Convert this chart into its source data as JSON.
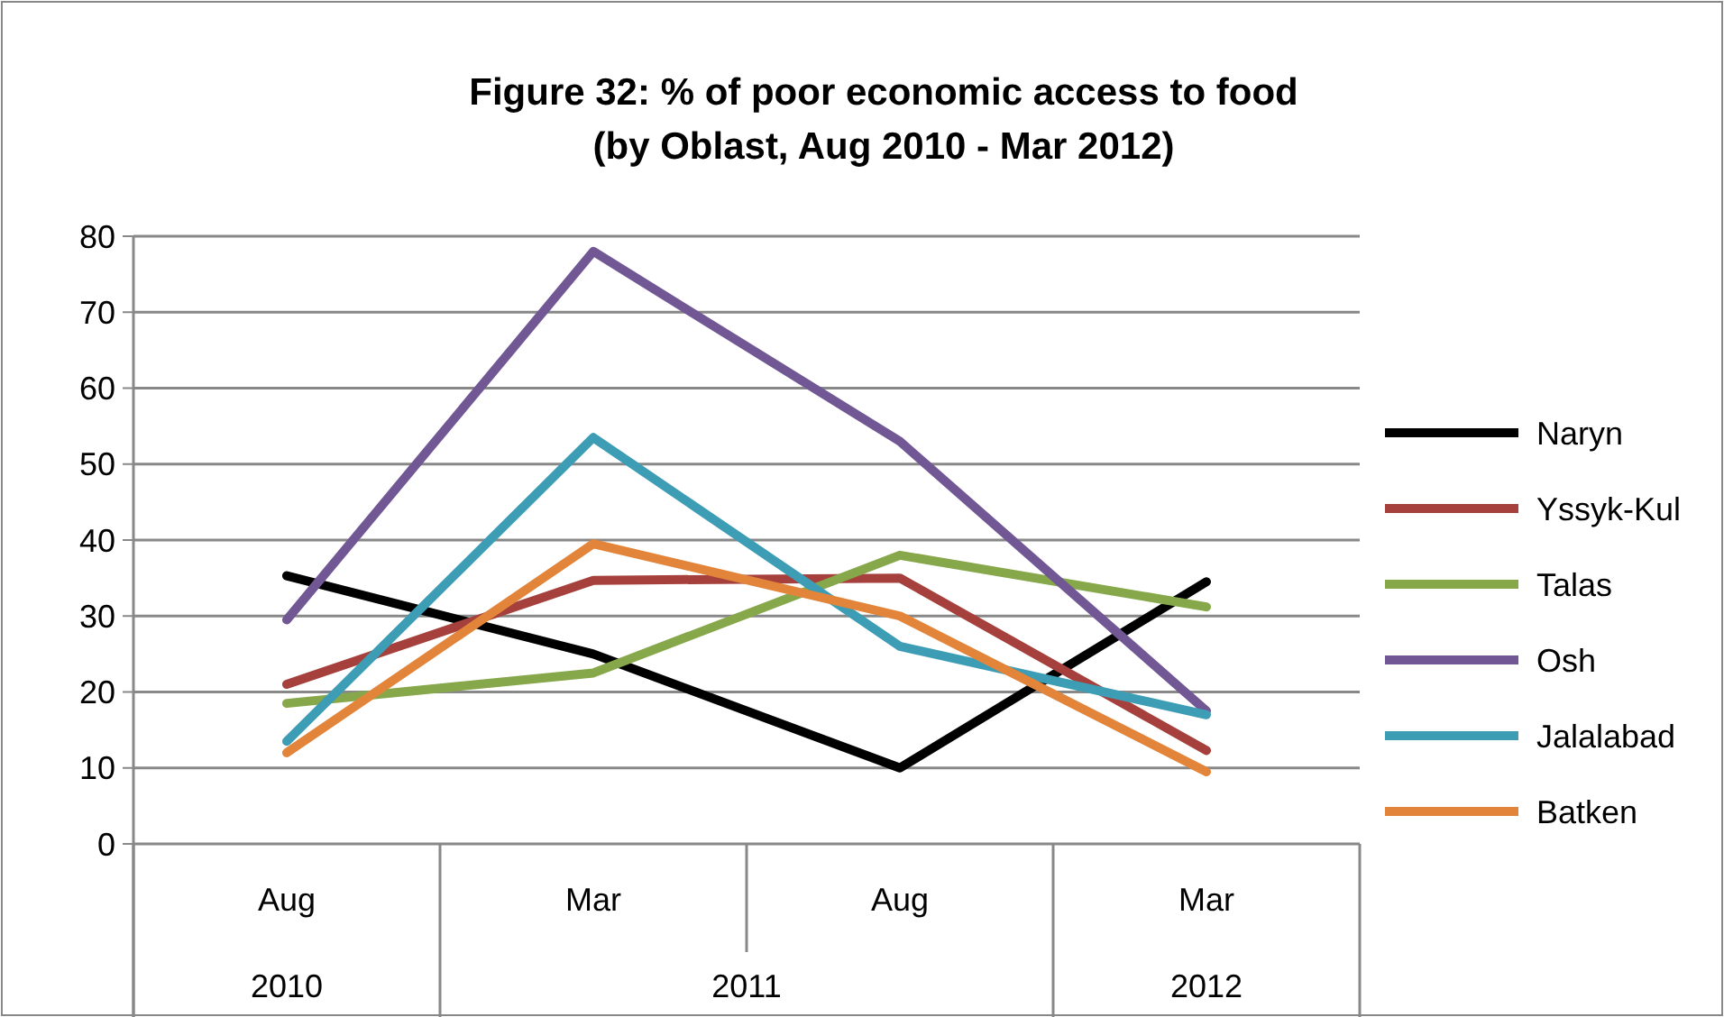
{
  "chart_data": {
    "type": "line",
    "title": "Figure 32: % of poor economic access to food\n(by Oblast, Aug 2010 - Mar 2012)",
    "categories": [
      "Aug",
      "Mar",
      "Aug",
      "Mar"
    ],
    "annotations": [
      "2010",
      "2011",
      "2012"
    ],
    "ylim": [
      0,
      80
    ],
    "yticks": [
      0,
      10,
      20,
      30,
      40,
      50,
      60,
      70,
      80
    ],
    "grid": "y",
    "legend": "right",
    "marker": "none",
    "line_style": "solid",
    "series": [
      {
        "name": "Naryn",
        "color": "#000000",
        "values": [
          35.3,
          25,
          10,
          34.5
        ]
      },
      {
        "name": "Yssyk-Kul",
        "color": "#a5403c",
        "values": [
          21,
          34.7,
          35,
          12.3
        ]
      },
      {
        "name": "Talas",
        "color": "#86a84a",
        "values": [
          18.5,
          22.5,
          38,
          31.2
        ]
      },
      {
        "name": "Osh",
        "color": "#715895",
        "values": [
          29.5,
          78,
          53,
          17.5
        ]
      },
      {
        "name": "Jalalabad",
        "color": "#3d9db5",
        "values": [
          13.5,
          53.5,
          26,
          17
        ]
      },
      {
        "name": "Batken",
        "color": "#e2853a",
        "values": [
          12,
          39.5,
          30,
          9.5
        ]
      }
    ]
  }
}
